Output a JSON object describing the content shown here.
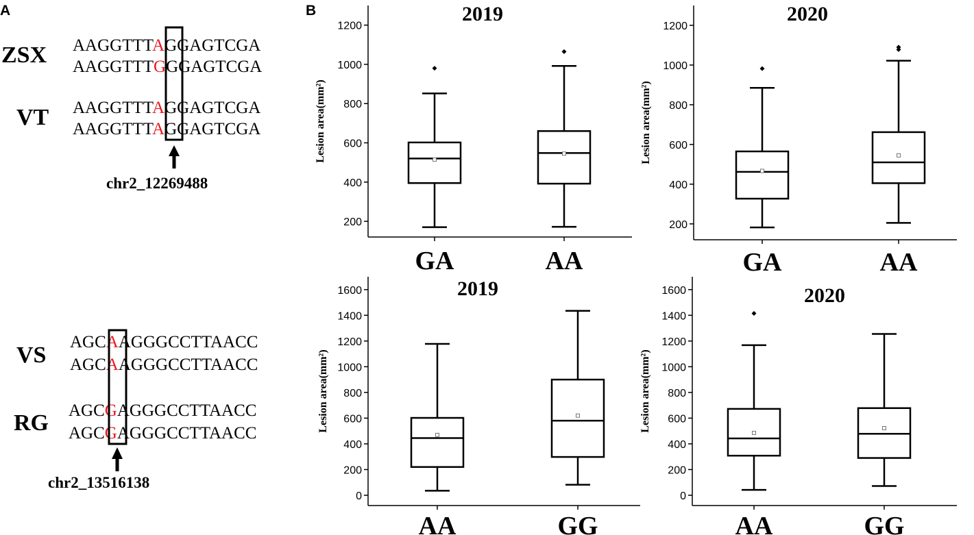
{
  "panels": {
    "a": "A",
    "b": "B"
  },
  "alignments": [
    {
      "groups": [
        {
          "name": "ZSX",
          "rows": [
            {
              "pre": "AAGGTTT",
              "snp": "A",
              "post": "GGAGTCGA"
            },
            {
              "pre": "AAGGTTT",
              "snp": "G",
              "post": "GGAGTCGA"
            }
          ]
        },
        {
          "name": "VT",
          "rows": [
            {
              "pre": "AAGGTTT",
              "snp": "A",
              "post": "GGAGTCGA"
            },
            {
              "pre": "AAGGTTT",
              "snp": "A",
              "post": "GGAGTCGA"
            }
          ]
        }
      ],
      "marker": "chr2_12269488"
    },
    {
      "groups": [
        {
          "name": "VS",
          "rows": [
            {
              "pre": "AGC",
              "snp": "A",
              "post": "AGGGCCTTAACC"
            },
            {
              "pre": "AGC",
              "snp": "A",
              "post": "AGGGCCTTAACC"
            }
          ]
        },
        {
          "name": "RG",
          "rows": [
            {
              "pre": "AGC",
              "snp": "G",
              "post": "AGGGCCTTAACC"
            },
            {
              "pre": "AGC",
              "snp": "G",
              "post": "AGGGCCTTAACC"
            }
          ]
        }
      ],
      "marker": "chr2_13516138"
    }
  ],
  "chart_data": [
    {
      "type": "box",
      "title": "2019",
      "ylabel": "Lesion area(mm²)",
      "ylim": [
        120,
        1300
      ],
      "yticks": [
        200,
        400,
        600,
        800,
        1000,
        1200
      ],
      "categories": [
        "GA",
        "AA"
      ],
      "boxes": [
        {
          "min": 170,
          "q1": 395,
          "median": 520,
          "q3": 602,
          "max": 852,
          "mean": 515,
          "outliers": [
            980
          ]
        },
        {
          "min": 172,
          "q1": 392,
          "median": 548,
          "q3": 660,
          "max": 992,
          "mean": 545,
          "outliers": [
            1065
          ]
        }
      ]
    },
    {
      "type": "box",
      "title": "2020",
      "ylabel": "Lesion area(mm²)",
      "ylim": [
        120,
        1300
      ],
      "yticks": [
        200,
        400,
        600,
        800,
        1000,
        1200
      ],
      "categories": [
        "GA",
        "AA"
      ],
      "boxes": [
        {
          "min": 182,
          "q1": 327,
          "median": 462,
          "q3": 565,
          "max": 885,
          "mean": 467,
          "outliers": [
            982
          ]
        },
        {
          "min": 205,
          "q1": 405,
          "median": 510,
          "q3": 662,
          "max": 1022,
          "mean": 545,
          "outliers": [
            1078,
            1090
          ]
        }
      ]
    },
    {
      "type": "box",
      "title": "2019",
      "ylabel": "Lesion area(mm²)",
      "ylim": [
        -80,
        1700
      ],
      "yticks": [
        0,
        200,
        400,
        600,
        800,
        1000,
        1200,
        1400,
        1600
      ],
      "categories": [
        "AA",
        "GG"
      ],
      "boxes": [
        {
          "min": 35,
          "q1": 220,
          "median": 445,
          "q3": 602,
          "max": 1178,
          "mean": 470,
          "outliers": []
        },
        {
          "min": 82,
          "q1": 298,
          "median": 580,
          "q3": 900,
          "max": 1435,
          "mean": 620,
          "outliers": []
        }
      ]
    },
    {
      "type": "box",
      "title": "2020",
      "ylabel": "Lesion area(mm²)",
      "ylim": [
        -80,
        1700
      ],
      "yticks": [
        0,
        200,
        400,
        600,
        800,
        1000,
        1200,
        1400,
        1600
      ],
      "categories": [
        "AA",
        "GG"
      ],
      "boxes": [
        {
          "min": 42,
          "q1": 308,
          "median": 442,
          "q3": 672,
          "max": 1168,
          "mean": 485,
          "outliers": [
            1415
          ]
        },
        {
          "min": 72,
          "q1": 290,
          "median": 478,
          "q3": 678,
          "max": 1255,
          "mean": 522,
          "outliers": []
        }
      ]
    }
  ]
}
